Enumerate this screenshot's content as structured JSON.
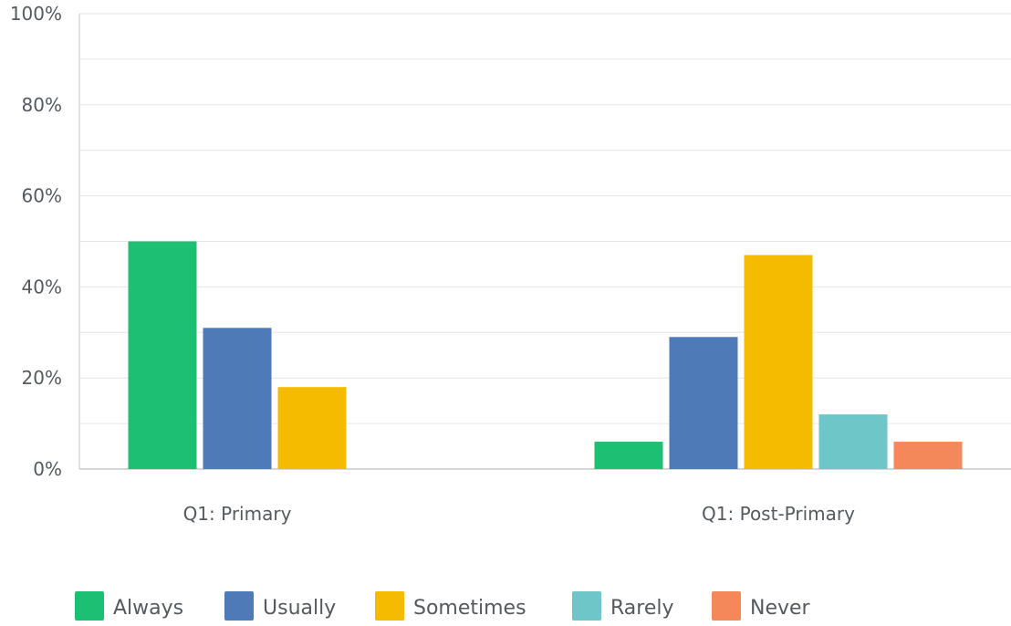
{
  "chart_data": {
    "type": "bar",
    "categories": [
      "Q1: Primary",
      "Q1: Post-Primary"
    ],
    "series": [
      {
        "name": "Always",
        "color": "#1dbf73",
        "values": [
          50,
          6
        ]
      },
      {
        "name": "Usually",
        "color": "#4f7ab8",
        "values": [
          31,
          29
        ]
      },
      {
        "name": "Sometimes",
        "color": "#f5bb00",
        "values": [
          18,
          47
        ]
      },
      {
        "name": "Rarely",
        "color": "#6ec6c9",
        "values": [
          0,
          12
        ]
      },
      {
        "name": "Never",
        "color": "#f5885a",
        "values": [
          0,
          6
        ]
      }
    ],
    "ylim": [
      0,
      100
    ],
    "yticks": [
      "0%",
      "20%",
      "40%",
      "60%",
      "80%",
      "100%"
    ],
    "ytick_values": [
      0,
      20,
      40,
      60,
      80,
      100
    ],
    "minor_grid_values": [
      10,
      30,
      50,
      70,
      90
    ],
    "grid": true,
    "legend_position": "bottom-left",
    "title": "",
    "xlabel": "",
    "ylabel": ""
  }
}
